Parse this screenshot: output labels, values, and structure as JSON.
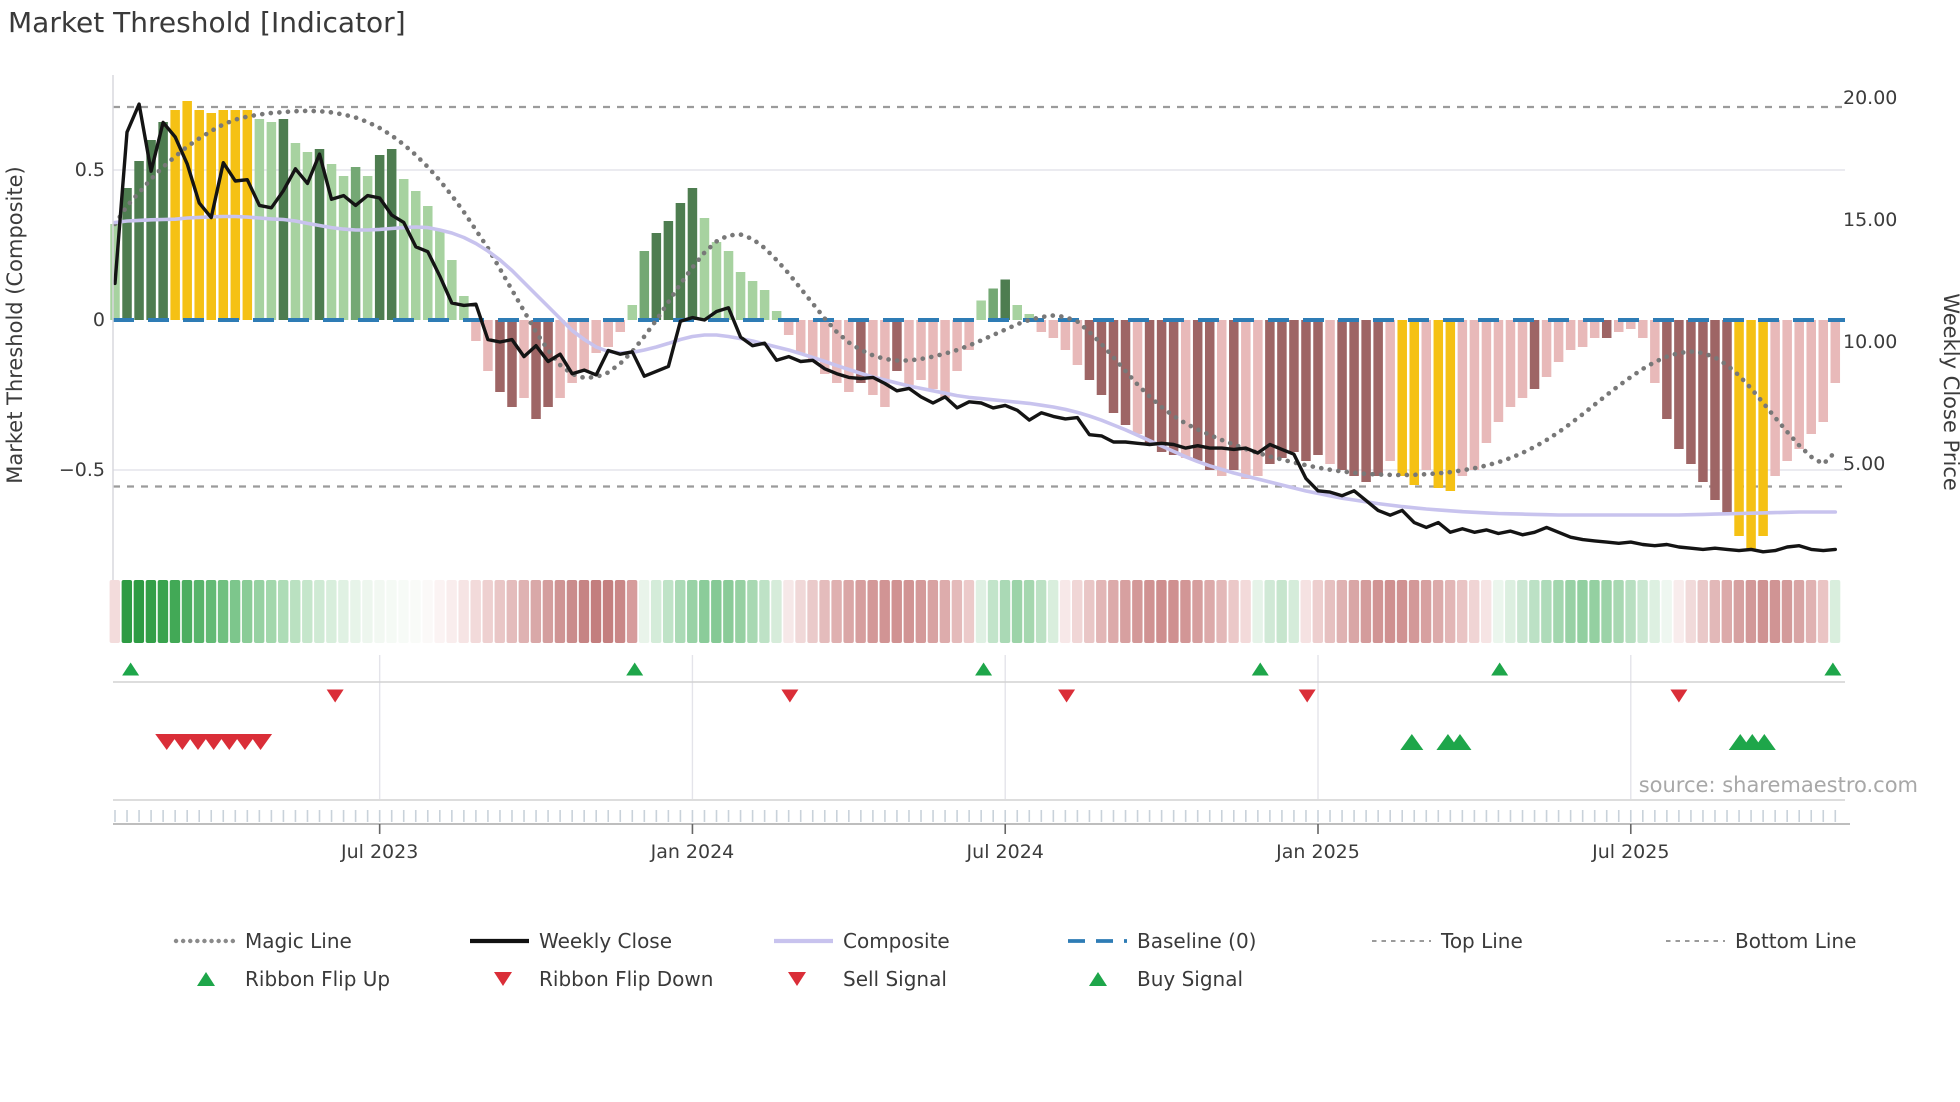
{
  "title": "Market Threshold [Indicator]",
  "source_note": "source: sharemaestro.com",
  "axes": {
    "left_label": "Market Threshold (Composite)",
    "right_label": "Weekly Close Price",
    "left_ticks": [
      {
        "label": "0.5",
        "value": 0.5
      },
      {
        "label": "0",
        "value": 0.0
      },
      {
        "label": "−0.5",
        "value": -0.5
      }
    ],
    "right_ticks": [
      {
        "label": "20.00",
        "value": 20
      },
      {
        "label": "15.00",
        "value": 15
      },
      {
        "label": "10.00",
        "value": 10
      },
      {
        "label": "5.00",
        "value": 5
      }
    ],
    "x_ticks": [
      {
        "label": "Jul 2023",
        "week": 22
      },
      {
        "label": "Jan 2024",
        "week": 48
      },
      {
        "label": "Jul 2024",
        "week": 74
      },
      {
        "label": "Jan 2025",
        "week": 100
      },
      {
        "label": "Jul 2025",
        "week": 126
      }
    ]
  },
  "colors": {
    "bar_classes": {
      "lg": "#a7d2a0",
      "mg": "#74a874",
      "dg": "#4e7d50",
      "y": "#f5c114",
      "lp": "#e8b9b9",
      "dr": "#9e6565"
    },
    "close_line": "#141414",
    "composite_line": "#c8c3ee",
    "magic_line": "#787878",
    "baseline": "#2e7cb5",
    "threshold_lines": "#9b9b9b",
    "grid": "#ebebf0",
    "spine": "#d8d8de",
    "marker_green": "#1ea64a",
    "marker_red": "#da2e38",
    "text": "#3a3a3a",
    "muted_text": "#a8a8a8",
    "subplot_line": "#d2d2d2",
    "axis_line": "#a8a8a8",
    "minor_tick": "#c9d2da",
    "signal_grid": "#e4e4ea"
  },
  "legend": {
    "row1": [
      {
        "label": "Magic Line",
        "type": "dotted-gray"
      },
      {
        "label": "Weekly Close",
        "type": "solid-black"
      },
      {
        "label": "Composite",
        "type": "solid-lavender"
      },
      {
        "label": "Baseline (0)",
        "type": "dashed-blue"
      },
      {
        "label": "Top Line",
        "type": "dashed-gray"
      },
      {
        "label": "Bottom Line",
        "type": "dashed-gray"
      }
    ],
    "row2": [
      {
        "label": "Ribbon Flip Up",
        "type": "triangle-up-green"
      },
      {
        "label": "Ribbon Flip Down",
        "type": "triangle-down-red"
      },
      {
        "label": "Sell Signal",
        "type": "triangle-down-red"
      },
      {
        "label": "Buy Signal",
        "type": "triangle-up-green"
      }
    ]
  },
  "chart_data": {
    "type": "bar",
    "x_unit": "week",
    "weeks": 144,
    "baseline": 0,
    "top_line": 0.71,
    "bottom_line": -0.555,
    "ylim_left": [
      -0.87,
      0.82
    ],
    "ylim_right": [
      0.1,
      20.9
    ],
    "bars": {
      "values": [
        0.32,
        0.44,
        0.53,
        0.6,
        0.66,
        0.7,
        0.73,
        0.7,
        0.69,
        0.7,
        0.7,
        0.7,
        0.67,
        0.66,
        0.67,
        0.59,
        0.56,
        0.57,
        0.52,
        0.48,
        0.51,
        0.48,
        0.55,
        0.57,
        0.47,
        0.43,
        0.38,
        0.3,
        0.2,
        0.08,
        -0.07,
        -0.17,
        -0.24,
        -0.29,
        -0.26,
        -0.33,
        -0.29,
        -0.26,
        -0.21,
        -0.17,
        -0.11,
        -0.09,
        -0.04,
        0.05,
        0.23,
        0.29,
        0.33,
        0.39,
        0.44,
        0.34,
        0.26,
        0.23,
        0.16,
        0.13,
        0.1,
        0.03,
        -0.05,
        -0.11,
        -0.14,
        -0.18,
        -0.21,
        -0.24,
        -0.21,
        -0.25,
        -0.29,
        -0.17,
        -0.22,
        -0.2,
        -0.23,
        -0.26,
        -0.17,
        -0.1,
        0.065,
        0.105,
        0.135,
        0.05,
        0.02,
        -0.04,
        -0.06,
        -0.1,
        -0.15,
        -0.2,
        -0.25,
        -0.31,
        -0.35,
        -0.38,
        -0.41,
        -0.44,
        -0.45,
        -0.46,
        -0.47,
        -0.5,
        -0.52,
        -0.5,
        -0.53,
        -0.52,
        -0.48,
        -0.46,
        -0.44,
        -0.47,
        -0.45,
        -0.48,
        -0.5,
        -0.52,
        -0.54,
        -0.52,
        -0.47,
        -0.52,
        -0.55,
        -0.5,
        -0.56,
        -0.57,
        -0.52,
        -0.5,
        -0.41,
        -0.34,
        -0.29,
        -0.26,
        -0.23,
        -0.19,
        -0.14,
        -0.1,
        -0.09,
        -0.06,
        -0.06,
        -0.04,
        -0.03,
        -0.06,
        -0.21,
        -0.33,
        -0.43,
        -0.48,
        -0.54,
        -0.6,
        -0.65,
        -0.72,
        -0.77,
        -0.72,
        -0.52,
        -0.47,
        -0.43,
        -0.38,
        -0.34,
        -0.21
      ],
      "color_class": [
        "lg",
        "dg",
        "dg",
        "dg",
        "dg",
        "y",
        "y",
        "y",
        "y",
        "y",
        "y",
        "y",
        "lg",
        "lg",
        "dg",
        "lg",
        "lg",
        "dg",
        "lg",
        "lg",
        "mg",
        "lg",
        "dg",
        "dg",
        "lg",
        "lg",
        "lg",
        "lg",
        "lg",
        "lg",
        "lp",
        "lp",
        "dr",
        "dr",
        "lp",
        "dr",
        "dr",
        "lp",
        "lp",
        "lp",
        "lp",
        "lp",
        "lp",
        "lg",
        "mg",
        "dg",
        "dg",
        "dg",
        "dg",
        "lg",
        "lg",
        "lg",
        "lg",
        "lg",
        "lg",
        "lg",
        "lp",
        "lp",
        "lp",
        "lp",
        "lp",
        "lp",
        "dr",
        "lp",
        "lp",
        "dr",
        "lp",
        "lp",
        "lp",
        "lp",
        "lp",
        "lp",
        "lg",
        "mg",
        "dg",
        "lg",
        "lg",
        "lp",
        "lp",
        "lp",
        "lp",
        "dr",
        "dr",
        "dr",
        "dr",
        "lp",
        "dr",
        "dr",
        "dr",
        "lp",
        "dr",
        "dr",
        "lp",
        "dr",
        "lp",
        "lp",
        "dr",
        "dr",
        "dr",
        "dr",
        "dr",
        "lp",
        "dr",
        "dr",
        "dr",
        "dr",
        "lp",
        "y",
        "y",
        "lp",
        "y",
        "y",
        "lp",
        "lp",
        "lp",
        "lp",
        "lp",
        "lp",
        "dr",
        "lp",
        "lp",
        "lp",
        "lp",
        "lp",
        "dr",
        "lp",
        "lp",
        "lp",
        "lp",
        "dr",
        "dr",
        "dr",
        "dr",
        "dr",
        "dr",
        "y",
        "y",
        "y",
        "lp",
        "lp",
        "lp",
        "lp",
        "lp",
        "lp"
      ]
    },
    "series": [
      {
        "name": "Weekly Close",
        "axis": "right",
        "values": [
          12.4,
          18.6,
          19.75,
          17.0,
          19.0,
          18.4,
          17.3,
          15.7,
          15.1,
          17.35,
          16.6,
          16.65,
          15.6,
          15.5,
          16.2,
          17.1,
          16.5,
          17.7,
          15.85,
          16.0,
          15.6,
          16.0,
          15.9,
          15.2,
          14.9,
          13.9,
          13.7,
          12.7,
          11.6,
          11.5,
          11.55,
          10.1,
          10.0,
          10.1,
          9.4,
          9.85,
          9.2,
          9.5,
          8.7,
          8.85,
          8.65,
          9.65,
          9.5,
          9.6,
          8.6,
          8.8,
          9.0,
          10.85,
          11.0,
          10.9,
          11.25,
          11.4,
          10.2,
          9.85,
          9.95,
          9.25,
          9.4,
          9.2,
          9.25,
          8.9,
          8.7,
          8.55,
          8.5,
          8.55,
          8.3,
          8.0,
          8.1,
          7.75,
          7.5,
          7.75,
          7.3,
          7.55,
          7.5,
          7.3,
          7.4,
          7.2,
          6.8,
          7.1,
          6.95,
          6.85,
          6.9,
          6.2,
          6.15,
          5.9,
          5.9,
          5.85,
          5.8,
          5.85,
          5.8,
          5.65,
          5.75,
          5.65,
          5.65,
          5.6,
          5.65,
          5.45,
          5.8,
          5.6,
          5.4,
          4.4,
          3.9,
          3.85,
          3.7,
          3.9,
          3.5,
          3.1,
          2.9,
          3.1,
          2.6,
          2.4,
          2.6,
          2.2,
          2.35,
          2.2,
          2.3,
          2.15,
          2.25,
          2.1,
          2.2,
          2.4,
          2.2,
          2.0,
          1.9,
          1.85,
          1.8,
          1.75,
          1.8,
          1.7,
          1.65,
          1.7,
          1.6,
          1.55,
          1.5,
          1.55,
          1.5,
          1.45,
          1.5,
          1.4,
          1.45,
          1.6,
          1.65,
          1.5,
          1.45,
          1.5
        ]
      },
      {
        "name": "Composite",
        "axis": "left",
        "values": [
          0.325,
          0.33,
          0.332,
          0.334,
          0.335,
          0.336,
          0.34,
          0.342,
          0.344,
          0.345,
          0.345,
          0.343,
          0.34,
          0.337,
          0.335,
          0.33,
          0.322,
          0.315,
          0.308,
          0.303,
          0.3,
          0.3,
          0.302,
          0.305,
          0.308,
          0.31,
          0.308,
          0.3,
          0.29,
          0.275,
          0.255,
          0.23,
          0.2,
          0.165,
          0.125,
          0.085,
          0.045,
          0.005,
          -0.035,
          -0.065,
          -0.09,
          -0.105,
          -0.11,
          -0.108,
          -0.1,
          -0.09,
          -0.078,
          -0.065,
          -0.055,
          -0.05,
          -0.05,
          -0.055,
          -0.062,
          -0.07,
          -0.08,
          -0.09,
          -0.1,
          -0.112,
          -0.125,
          -0.138,
          -0.152,
          -0.165,
          -0.178,
          -0.19,
          -0.2,
          -0.21,
          -0.22,
          -0.228,
          -0.236,
          -0.244,
          -0.252,
          -0.258,
          -0.262,
          -0.266,
          -0.27,
          -0.274,
          -0.278,
          -0.284,
          -0.29,
          -0.298,
          -0.308,
          -0.32,
          -0.334,
          -0.35,
          -0.366,
          -0.384,
          -0.402,
          -0.42,
          -0.438,
          -0.456,
          -0.472,
          -0.486,
          -0.498,
          -0.51,
          -0.52,
          -0.53,
          -0.54,
          -0.55,
          -0.56,
          -0.57,
          -0.578,
          -0.586,
          -0.594,
          -0.6,
          -0.606,
          -0.612,
          -0.617,
          -0.622,
          -0.626,
          -0.63,
          -0.633,
          -0.636,
          -0.639,
          -0.641,
          -0.643,
          -0.645,
          -0.646,
          -0.647,
          -0.648,
          -0.649,
          -0.65,
          -0.65,
          -0.65,
          -0.65,
          -0.65,
          -0.65,
          -0.65,
          -0.65,
          -0.65,
          -0.65,
          -0.65,
          -0.649,
          -0.648,
          -0.647,
          -0.646,
          -0.645,
          -0.644,
          -0.643,
          -0.642,
          -0.641,
          -0.64,
          -0.64,
          -0.64,
          -0.64
        ]
      },
      {
        "name": "Magic Line",
        "axis": "left",
        "values": [
          0.32,
          0.38,
          0.425,
          0.47,
          0.51,
          0.545,
          0.578,
          0.605,
          0.63,
          0.652,
          0.668,
          0.678,
          0.685,
          0.69,
          0.693,
          0.696,
          0.697,
          0.696,
          0.692,
          0.685,
          0.675,
          0.66,
          0.64,
          0.615,
          0.585,
          0.55,
          0.51,
          0.465,
          0.415,
          0.36,
          0.3,
          0.24,
          0.17,
          0.1,
          0.03,
          -0.04,
          -0.1,
          -0.15,
          -0.18,
          -0.193,
          -0.19,
          -0.175,
          -0.145,
          -0.105,
          -0.055,
          0.0,
          0.06,
          0.12,
          0.175,
          0.225,
          0.262,
          0.282,
          0.285,
          0.27,
          0.24,
          0.2,
          0.155,
          0.105,
          0.055,
          0.005,
          -0.04,
          -0.075,
          -0.1,
          -0.118,
          -0.13,
          -0.135,
          -0.135,
          -0.13,
          -0.122,
          -0.112,
          -0.1,
          -0.085,
          -0.068,
          -0.05,
          -0.032,
          -0.014,
          0.0,
          0.01,
          0.015,
          0.01,
          -0.005,
          -0.04,
          -0.08,
          -0.125,
          -0.17,
          -0.215,
          -0.255,
          -0.29,
          -0.32,
          -0.345,
          -0.365,
          -0.383,
          -0.4,
          -0.415,
          -0.43,
          -0.443,
          -0.455,
          -0.465,
          -0.475,
          -0.484,
          -0.492,
          -0.499,
          -0.505,
          -0.509,
          -0.513,
          -0.515,
          -0.516,
          -0.517,
          -0.516,
          -0.514,
          -0.511,
          -0.507,
          -0.501,
          -0.494,
          -0.485,
          -0.474,
          -0.46,
          -0.443,
          -0.423,
          -0.4,
          -0.374,
          -0.345,
          -0.314,
          -0.282,
          -0.25,
          -0.219,
          -0.19,
          -0.163,
          -0.14,
          -0.122,
          -0.11,
          -0.105,
          -0.11,
          -0.125,
          -0.15,
          -0.185,
          -0.228,
          -0.276,
          -0.325,
          -0.373,
          -0.418,
          -0.456,
          -0.48,
          -0.44
        ]
      }
    ],
    "ribbon": [
      "#f3dcdc",
      "#2d9b43",
      "#2d9b43",
      "#339f48",
      "#39a34e",
      "#42a956",
      "#4cae60",
      "#57b46a",
      "#63ba75",
      "#70c080",
      "#7dc68c",
      "#8acc97",
      "#96d1a2",
      "#a2d7ac",
      "#aedcb7",
      "#bae1c1",
      "#c5e6cb",
      "#cfead4",
      "#d8eedc",
      "#e0f1e3",
      "#e7f4e9",
      "#edf6ee",
      "#f2f8f2",
      "#f5faf5",
      "#f7fbf7",
      "#f9fbf8",
      "#fbf9f8",
      "#fbf3f3",
      "#f9eded",
      "#f6e4e4",
      "#f2dada",
      "#eed0d0",
      "#e9c6c6",
      "#e4bcbc",
      "#dfb2b2",
      "#d9a8a8",
      "#d49e9e",
      "#cf9494",
      "#ca8c8c",
      "#c68484",
      "#c37e7e",
      "#c47f7f",
      "#c98787",
      "#d69c9c",
      "#e9f4ea",
      "#d4ecd9",
      "#bfe3c7",
      "#abdab6",
      "#99d2a6",
      "#8bcc9a",
      "#85c995",
      "#8acb98",
      "#96d0a2",
      "#a8d8b2",
      "#bee2c6",
      "#d6ecda",
      "#f6e8e8",
      "#f0d8d8",
      "#eacaca",
      "#e4bcbc",
      "#dfb0b0",
      "#daa6a6",
      "#d69e9e",
      "#d39898",
      "#d19494",
      "#d09292",
      "#d19494",
      "#d49a9a",
      "#d8a2a2",
      "#ddacac",
      "#e4baba",
      "#eccaca",
      "#dff0e3",
      "#c2e4ca",
      "#aad9b5",
      "#9cd3a8",
      "#a5d7af",
      "#bce1c4",
      "#d9eedd",
      "#f7e8e8",
      "#f0d6d6",
      "#e9c6c6",
      "#e2b6b6",
      "#dcaaaa",
      "#d7a0a0",
      "#d39898",
      "#d09292",
      "#ce8e8e",
      "#cf9090",
      "#d29696",
      "#d69e9e",
      "#dcaaaa",
      "#e3b8b8",
      "#ebc8c8",
      "#f3dada",
      "#e5f3e8",
      "#d0e9d6",
      "#c6e5cd",
      "#d5ecda",
      "#f5e2e2",
      "#edcece",
      "#e6c0c0",
      "#dfb2b2",
      "#d9a6a6",
      "#d49c9c",
      "#d19494",
      "#cf9090",
      "#d09292",
      "#d39898",
      "#d7a0a0",
      "#dcaaaa",
      "#e2b6b6",
      "#e9c4c4",
      "#f0d4d4",
      "#f6e4e4",
      "#ebf6ed",
      "#dcefe0",
      "#cce7d3",
      "#bce1c5",
      "#aedbb9",
      "#a2d6ae",
      "#98d1a5",
      "#92cfa0",
      "#94d0a1",
      "#9cd3a8",
      "#a8d8b2",
      "#b8dfc1",
      "#cae7d1",
      "#ddf0e1",
      "#eef7f0",
      "#f8ecec",
      "#f1dada",
      "#e9c8c8",
      "#e2b8b8",
      "#dcaaaa",
      "#d6a0a0",
      "#d29898",
      "#cf9292",
      "#d09494",
      "#d39a9a",
      "#d8a4a4",
      "#e0b2b2",
      "#eac4c4",
      "#d9eedd"
    ],
    "signals": {
      "ribbon_flip_up_weeks": [
        1.3,
        43.2,
        72.2,
        95.2,
        115.1,
        142.8
      ],
      "ribbon_flip_down_weeks": [
        18.3,
        56.1,
        79.1,
        99.1,
        130.0
      ],
      "sell_signal_weeks": [
        4.3,
        5.6,
        6.9,
        8.2,
        9.5,
        10.8,
        12.1
      ],
      "buy_signal_weeks": [
        107.8,
        110.8,
        111.8,
        135.1,
        136.1,
        137.1
      ]
    }
  }
}
